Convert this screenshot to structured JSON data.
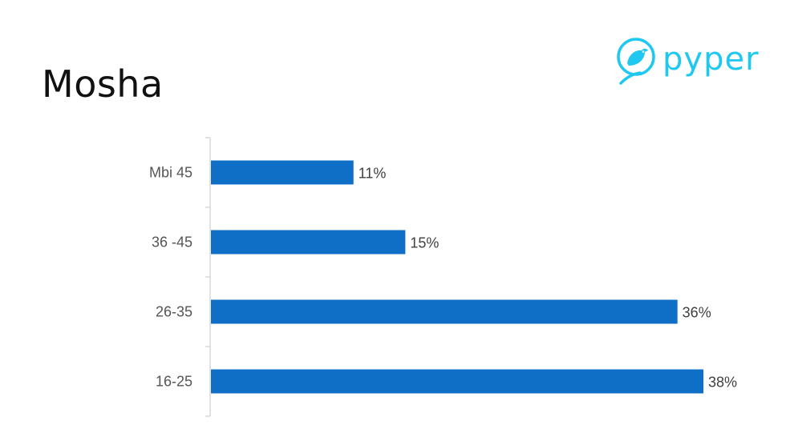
{
  "slide": {
    "title": "Mosha",
    "logo_text": "pyper"
  },
  "colors": {
    "bar": "#0f6fc6",
    "axis": "#d9d9d9",
    "logo": "#1ec8f0"
  },
  "icons": {
    "logo_icon": "bird-icon"
  },
  "chart_data": {
    "type": "bar",
    "orientation": "horizontal",
    "categories": [
      "Mbi 45",
      "36 -45",
      "26-35",
      "16-25"
    ],
    "values": [
      11,
      15,
      36,
      38
    ],
    "data_labels": [
      "11%",
      "15%",
      "36%",
      "38%"
    ],
    "unit": "%",
    "xlim": [
      0,
      38
    ],
    "grid": false,
    "legend": "none"
  }
}
